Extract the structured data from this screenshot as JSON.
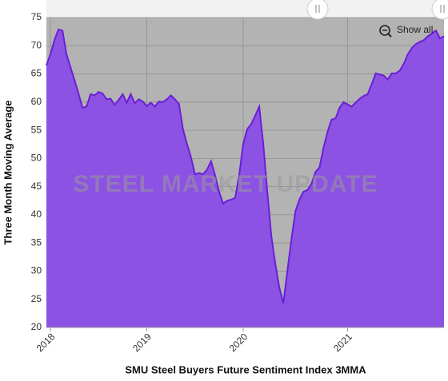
{
  "chart_data": {
    "type": "area",
    "x_axis_title": "SMU Steel Buyers Future Sentiment Index 3MMA",
    "y_axis_title": "Three Month Moving Average",
    "watermark": "STEEL MARKET UPDATE",
    "button": "Show all",
    "categories": [
      null,
      "2018",
      null,
      null,
      null,
      null,
      null,
      null,
      null,
      null,
      null,
      null,
      null,
      null,
      null,
      null,
      null,
      null,
      null,
      null,
      null,
      null,
      null,
      null,
      null,
      "2019",
      null,
      null,
      null,
      null,
      null,
      null,
      null,
      null,
      null,
      null,
      null,
      null,
      null,
      null,
      null,
      null,
      null,
      null,
      null,
      null,
      null,
      null,
      null,
      "2020",
      null,
      null,
      null,
      null,
      null,
      null,
      null,
      null,
      null,
      null,
      null,
      null,
      null,
      null,
      null,
      null,
      null,
      null,
      null,
      null,
      null,
      null,
      null,
      null,
      null,
      "2021",
      null,
      null,
      null,
      null,
      null,
      null,
      null,
      null,
      null,
      null,
      null,
      null,
      null,
      null,
      null,
      null,
      null,
      null,
      null,
      null,
      null,
      null,
      null,
      null
    ],
    "series": [
      {
        "name": "SMU Steel Buyers Future Sentiment Index 3MMA",
        "color": "#8c52e3",
        "line_color": "#6a1fd6",
        "values": [
          66.5,
          68.5,
          71,
          72.9,
          72.7,
          68.5,
          66.2,
          63.9,
          61.5,
          59,
          59.2,
          61.4,
          61.2,
          61.8,
          61.5,
          60.5,
          60.6,
          59.5,
          60.4,
          61.4,
          59.9,
          61.4,
          59.8,
          60.5,
          60.1,
          59.3,
          59.9,
          59.2,
          60.1,
          60,
          60.5,
          61.2,
          60.5,
          59.7,
          55.2,
          52.6,
          50.2,
          47.2,
          47.4,
          47.2,
          48,
          49.5,
          47,
          44.1,
          42,
          42.5,
          42.7,
          43,
          47,
          52.6,
          55.2,
          56.1,
          57.6,
          59.2,
          52.6,
          44.1,
          36.3,
          31.3,
          27.1,
          24.3,
          30,
          35.6,
          40.6,
          42.7,
          44.1,
          44.4,
          45.5,
          47.6,
          48.4,
          51.9,
          54.7,
          56.9,
          57.1,
          59,
          60,
          59.6,
          59.2,
          59.9,
          60.6,
          61.1,
          61.4,
          63.2,
          65.1,
          64.9,
          64.7,
          64,
          65.1,
          65.1,
          65.6,
          66.8,
          68.5,
          69.6,
          70.3,
          70.7,
          71,
          71.7,
          72.2,
          72.7,
          71.3,
          71.7
        ]
      }
    ],
    "ylim": [
      20,
      75
    ],
    "yticks": [
      20,
      25,
      30,
      35,
      40,
      45,
      50,
      55,
      60,
      65,
      70,
      75
    ],
    "grid": true,
    "plot_background": "#b3b3b3"
  }
}
